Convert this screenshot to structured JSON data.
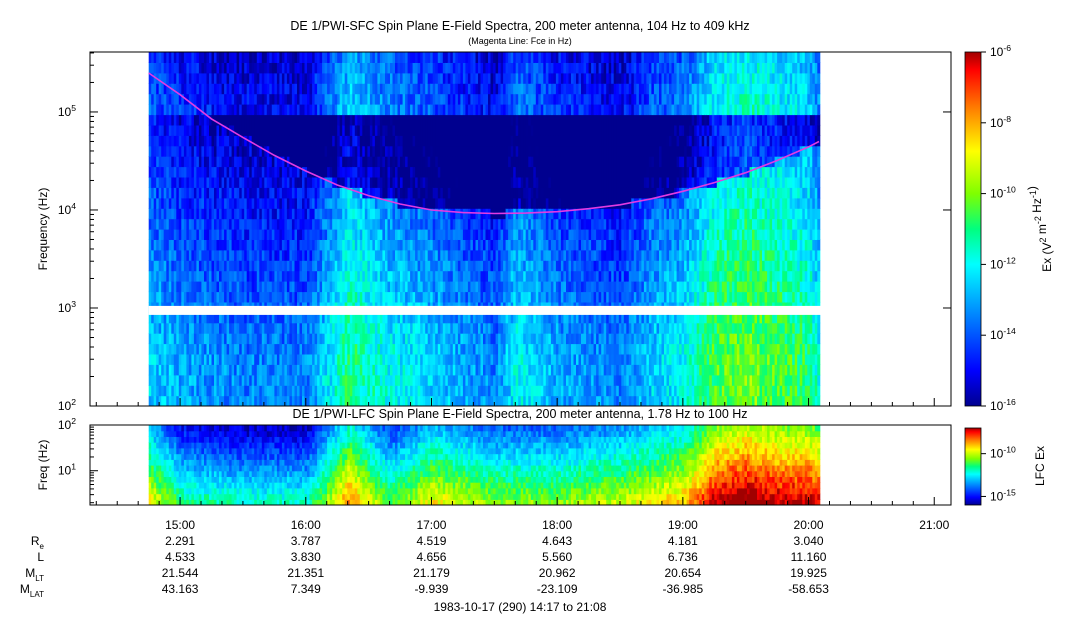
{
  "chart_data": [
    {
      "type": "heatmap",
      "title": "DE 1/PWI-SFC  Spin Plane E-Field Spectra, 200 meter antenna, 104 Hz to 409 kHz",
      "subtitle": "(Magenta Line: Fce in Hz)",
      "ylabel": "Frequency (Hz)",
      "yscale": "log",
      "ylim": [
        100,
        409000
      ],
      "ytick_values": [
        100,
        1000,
        10000,
        100000
      ],
      "ytick_labels": [
        {
          "base": "10",
          "exp": "2"
        },
        {
          "base": "10",
          "exp": "3"
        },
        {
          "base": "10",
          "exp": "4"
        },
        {
          "base": "10",
          "exp": "5"
        }
      ],
      "gap_hz": [
        850,
        1050
      ],
      "colorbar": {
        "label": "Ex (V² m⁻² Hz⁻¹)",
        "label_parts": {
          "pre": "Ex (V",
          "e1": "2",
          "mid": " m",
          "e2": "-2",
          "mid2": " Hz",
          "e3": "-1",
          "post": ")"
        },
        "scale": "log",
        "range": [
          1e-16,
          1e-06
        ],
        "ticks": [
          {
            "value": -6,
            "label": {
              "base": "10",
              "exp": "-6"
            }
          },
          {
            "value": -8,
            "label": {
              "base": "10",
              "exp": "-8"
            }
          },
          {
            "value": -10,
            "label": {
              "base": "10",
              "exp": "-10"
            }
          },
          {
            "value": -12,
            "label": {
              "base": "10",
              "exp": "-12"
            }
          },
          {
            "value": -14,
            "label": {
              "base": "10",
              "exp": "-14"
            }
          },
          {
            "value": -16,
            "label": {
              "base": "10",
              "exp": "-16"
            }
          }
        ]
      },
      "series": [
        {
          "name": "Fce",
          "color": "#e23be2",
          "x": [
            "14:45",
            "15:00",
            "15:15",
            "15:30",
            "15:45",
            "16:00",
            "16:15",
            "16:30",
            "16:45",
            "17:00",
            "17:15",
            "17:30",
            "17:45",
            "18:00",
            "18:15",
            "18:30",
            "18:45",
            "19:00",
            "19:15",
            "19:30",
            "19:45",
            "20:00",
            "20:05"
          ],
          "y": [
            250000,
            150000,
            85000,
            55000,
            36000,
            25000,
            18000,
            14000,
            11500,
            10000,
            9400,
            9200,
            9300,
            9600,
            10300,
            11300,
            13000,
            15500,
            19000,
            24000,
            32000,
            44000,
            50000
          ]
        }
      ],
      "intensity_profile": {
        "times": [
          "14:45",
          "15:00",
          "15:30",
          "16:00",
          "16:20",
          "16:40",
          "17:00",
          "17:30",
          "17:40",
          "18:00",
          "18:30",
          "18:45",
          "19:00",
          "19:15",
          "19:30",
          "19:45",
          "20:00",
          "20:05"
        ],
        "log10_ex_peak": [
          -12.5,
          -13,
          -13.5,
          -13.5,
          -11,
          -12,
          -12.5,
          -13.5,
          -12,
          -13,
          -13.5,
          -12.5,
          -12,
          -10.5,
          -10,
          -10.5,
          -11,
          -12
        ]
      }
    },
    {
      "type": "heatmap",
      "title": "DE 1/PWI-LFC  Spin Plane E-Field Spectra, 200 meter antenna, 1.78 Hz to 100 Hz",
      "ylabel": "Freq (Hz)",
      "yscale": "log",
      "ylim": [
        1.78,
        100
      ],
      "ytick_values": [
        10,
        100
      ],
      "ytick_labels": [
        {
          "base": "10",
          "exp": "1"
        },
        {
          "base": "10",
          "exp": "2"
        }
      ],
      "colorbar": {
        "label": "LFC Ex",
        "scale": "log",
        "range": [
          1e-16,
          1e-07
        ],
        "ticks": [
          {
            "value": -10,
            "label": {
              "base": "10",
              "exp": "-10"
            }
          },
          {
            "value": -15,
            "label": {
              "base": "10",
              "exp": "-15"
            }
          }
        ]
      },
      "intensity_profile": {
        "times": [
          "14:45",
          "15:00",
          "15:30",
          "16:00",
          "16:20",
          "16:40",
          "17:00",
          "17:30",
          "18:00",
          "18:30",
          "18:45",
          "19:00",
          "19:15",
          "19:30",
          "19:45",
          "20:00",
          "20:05"
        ],
        "log10_ex_at_10hz": [
          -11,
          -13,
          -13.5,
          -13.5,
          -10,
          -12.5,
          -11,
          -12,
          -12,
          -11.5,
          -11,
          -10.5,
          -8.5,
          -8,
          -8.5,
          -8.5,
          -9
        ]
      }
    }
  ],
  "time_axis": {
    "range": [
      "14:17",
      "21:08"
    ],
    "data_start": "14:45",
    "data_end": "20:05",
    "ticks": [
      "15:00",
      "16:00",
      "17:00",
      "18:00",
      "19:00",
      "20:00",
      "21:00"
    ]
  },
  "ephemeris": {
    "rows": [
      {
        "label": "R",
        "sub": "e",
        "values": [
          "2.291",
          "3.787",
          "4.519",
          "4.643",
          "4.181",
          "3.040"
        ]
      },
      {
        "label": "L",
        "sub": "",
        "values": [
          "4.533",
          "3.830",
          "4.656",
          "5.560",
          "6.736",
          "11.160"
        ]
      },
      {
        "label": "M",
        "sub": "LT",
        "values": [
          "21.544",
          "21.351",
          "21.179",
          "20.962",
          "20.654",
          "19.925"
        ]
      },
      {
        "label": "M",
        "sub": "LAT",
        "values": [
          "43.163",
          "7.349",
          "-9.939",
          "-23.109",
          "-36.985",
          "-58.653"
        ]
      }
    ]
  },
  "footer": "1983-10-17 (290) 14:17 to 21:08",
  "colors": {
    "fce_line": "#e23be2",
    "gap": "#ffffff",
    "colormap": [
      "#00008f",
      "#0000ff",
      "#007fff",
      "#00ffff",
      "#00ff7f",
      "#7fff00",
      "#ffff00",
      "#ff7f00",
      "#ff0000",
      "#a00000"
    ]
  }
}
